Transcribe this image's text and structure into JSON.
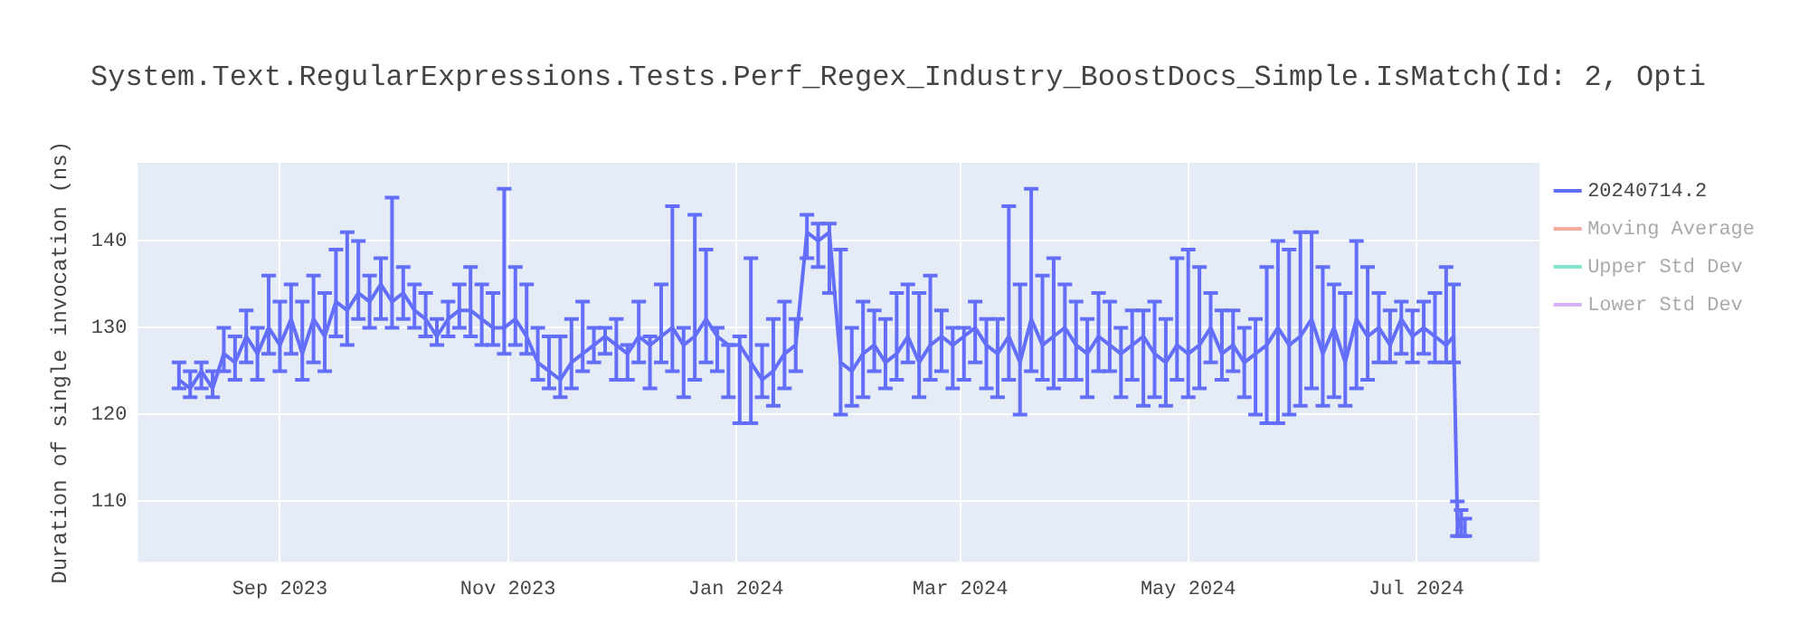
{
  "chart_data": {
    "type": "line",
    "title": "System.Text.RegularExpressions.Tests.Perf_Regex_Industry_BoostDocs_Simple.IsMatch(Id: 2, Opti",
    "ylabel": "Duration of single invocation (ns)",
    "xlim": [
      "2023-07-25",
      "2024-08-03"
    ],
    "xticks": [
      {
        "value": "2023-09-01",
        "label": "Sep 2023"
      },
      {
        "value": "2023-11-01",
        "label": "Nov 2023"
      },
      {
        "value": "2024-01-01",
        "label": "Jan 2024"
      },
      {
        "value": "2024-03-01",
        "label": "Mar 2024"
      },
      {
        "value": "2024-05-01",
        "label": "May 2024"
      },
      {
        "value": "2024-07-01",
        "label": "Jul 2024"
      }
    ],
    "ylim": [
      103,
      149
    ],
    "yticks": [
      110,
      120,
      130,
      140
    ],
    "grid": true,
    "legend": "top right",
    "marker": "none",
    "line_style": "solid",
    "x": [
      "2023-08-05",
      "2023-08-08",
      "2023-08-11",
      "2023-08-14",
      "2023-08-17",
      "2023-08-20",
      "2023-08-23",
      "2023-08-26",
      "2023-08-29",
      "2023-09-01",
      "2023-09-04",
      "2023-09-07",
      "2023-09-10",
      "2023-09-13",
      "2023-09-16",
      "2023-09-19",
      "2023-09-22",
      "2023-09-25",
      "2023-09-28",
      "2023-10-01",
      "2023-10-04",
      "2023-10-07",
      "2023-10-10",
      "2023-10-13",
      "2023-10-16",
      "2023-10-19",
      "2023-10-22",
      "2023-10-25",
      "2023-10-28",
      "2023-10-31",
      "2023-11-03",
      "2023-11-06",
      "2023-11-09",
      "2023-11-12",
      "2023-11-15",
      "2023-11-18",
      "2023-11-21",
      "2023-11-24",
      "2023-11-27",
      "2023-11-30",
      "2023-12-03",
      "2023-12-06",
      "2023-12-09",
      "2023-12-12",
      "2023-12-15",
      "2023-12-18",
      "2023-12-21",
      "2023-12-24",
      "2023-12-27",
      "2023-12-30",
      "2024-01-02",
      "2024-01-05",
      "2024-01-08",
      "2024-01-11",
      "2024-01-14",
      "2024-01-17",
      "2024-01-20",
      "2024-01-23",
      "2024-01-26",
      "2024-01-29",
      "2024-02-01",
      "2024-02-04",
      "2024-02-07",
      "2024-02-10",
      "2024-02-13",
      "2024-02-16",
      "2024-02-19",
      "2024-02-22",
      "2024-02-25",
      "2024-02-28",
      "2024-03-02",
      "2024-03-05",
      "2024-03-08",
      "2024-03-11",
      "2024-03-14",
      "2024-03-17",
      "2024-03-20",
      "2024-03-23",
      "2024-03-26",
      "2024-03-29",
      "2024-04-01",
      "2024-04-04",
      "2024-04-07",
      "2024-04-10",
      "2024-04-13",
      "2024-04-16",
      "2024-04-19",
      "2024-04-22",
      "2024-04-25",
      "2024-04-28",
      "2024-05-01",
      "2024-05-04",
      "2024-05-07",
      "2024-05-10",
      "2024-05-13",
      "2024-05-16",
      "2024-05-19",
      "2024-05-22",
      "2024-05-25",
      "2024-05-28",
      "2024-05-31",
      "2024-06-03",
      "2024-06-06",
      "2024-06-09",
      "2024-06-12",
      "2024-06-15",
      "2024-06-18",
      "2024-06-21",
      "2024-06-24",
      "2024-06-27",
      "2024-06-30",
      "2024-07-03",
      "2024-07-06",
      "2024-07-09",
      "2024-07-11",
      "2024-07-12",
      "2024-07-13",
      "2024-07-14"
    ],
    "series": [
      {
        "name": "20240714.2",
        "color": "#636efa",
        "values": [
          124,
          123,
          125,
          123,
          127,
          126,
          129,
          127,
          130,
          128,
          131,
          127,
          131,
          129,
          133,
          132,
          134,
          133,
          135,
          133,
          134,
          132,
          131,
          129,
          131,
          132,
          132,
          131,
          130,
          130,
          131,
          129,
          126,
          125,
          124,
          126,
          127,
          128,
          129,
          128,
          127,
          129,
          128,
          129,
          130,
          128,
          129,
          131,
          129,
          128,
          128,
          126,
          124,
          125,
          127,
          128,
          141,
          140,
          141,
          126,
          125,
          127,
          128,
          126,
          127,
          129,
          126,
          128,
          129,
          128,
          129,
          130,
          128,
          127,
          129,
          126,
          131,
          128,
          129,
          130,
          128,
          127,
          129,
          128,
          127,
          128,
          129,
          127,
          126,
          128,
          127,
          128,
          130,
          127,
          128,
          126,
          127,
          128,
          130,
          128,
          129,
          131,
          127,
          130,
          126,
          131,
          129,
          130,
          128,
          131,
          129,
          130,
          129,
          128,
          129,
          108,
          107,
          107
        ],
        "errors": [
          [
            123,
            126
          ],
          [
            122,
            125
          ],
          [
            123,
            126
          ],
          [
            122,
            125
          ],
          [
            125,
            130
          ],
          [
            124,
            129
          ],
          [
            126,
            132
          ],
          [
            124,
            130
          ],
          [
            127,
            136
          ],
          [
            125,
            133
          ],
          [
            127,
            135
          ],
          [
            124,
            133
          ],
          [
            126,
            136
          ],
          [
            125,
            134
          ],
          [
            129,
            139
          ],
          [
            128,
            141
          ],
          [
            131,
            140
          ],
          [
            130,
            136
          ],
          [
            131,
            138
          ],
          [
            130,
            145
          ],
          [
            131,
            137
          ],
          [
            130,
            135
          ],
          [
            129,
            134
          ],
          [
            128,
            131
          ],
          [
            129,
            133
          ],
          [
            130,
            135
          ],
          [
            129,
            137
          ],
          [
            128,
            135
          ],
          [
            128,
            134
          ],
          [
            127,
            146
          ],
          [
            128,
            137
          ],
          [
            127,
            135
          ],
          [
            124,
            130
          ],
          [
            123,
            129
          ],
          [
            122,
            129
          ],
          [
            123,
            131
          ],
          [
            125,
            133
          ],
          [
            126,
            130
          ],
          [
            127,
            130
          ],
          [
            124,
            131
          ],
          [
            124,
            128
          ],
          [
            126,
            133
          ],
          [
            123,
            129
          ],
          [
            126,
            135
          ],
          [
            125,
            144
          ],
          [
            122,
            130
          ],
          [
            124,
            143
          ],
          [
            126,
            139
          ],
          [
            125,
            130
          ],
          [
            122,
            128
          ],
          [
            119,
            129
          ],
          [
            119,
            138
          ],
          [
            122,
            128
          ],
          [
            121,
            131
          ],
          [
            123,
            133
          ],
          [
            125,
            131
          ],
          [
            138,
            143
          ],
          [
            137,
            142
          ],
          [
            134,
            142
          ],
          [
            120,
            139
          ],
          [
            121,
            130
          ],
          [
            122,
            133
          ],
          [
            125,
            132
          ],
          [
            123,
            131
          ],
          [
            124,
            134
          ],
          [
            126,
            135
          ],
          [
            122,
            134
          ],
          [
            124,
            136
          ],
          [
            125,
            132
          ],
          [
            123,
            130
          ],
          [
            124,
            130
          ],
          [
            126,
            133
          ],
          [
            123,
            131
          ],
          [
            122,
            131
          ],
          [
            124,
            144
          ],
          [
            120,
            135
          ],
          [
            125,
            146
          ],
          [
            124,
            136
          ],
          [
            123,
            138
          ],
          [
            124,
            135
          ],
          [
            124,
            133
          ],
          [
            122,
            131
          ],
          [
            125,
            134
          ],
          [
            125,
            133
          ],
          [
            122,
            130
          ],
          [
            124,
            132
          ],
          [
            121,
            132
          ],
          [
            122,
            133
          ],
          [
            121,
            131
          ],
          [
            124,
            138
          ],
          [
            122,
            139
          ],
          [
            123,
            137
          ],
          [
            126,
            134
          ],
          [
            124,
            132
          ],
          [
            125,
            132
          ],
          [
            122,
            130
          ],
          [
            120,
            131
          ],
          [
            119,
            137
          ],
          [
            119,
            140
          ],
          [
            120,
            139
          ],
          [
            121,
            141
          ],
          [
            123,
            141
          ],
          [
            121,
            137
          ],
          [
            122,
            135
          ],
          [
            121,
            134
          ],
          [
            123,
            140
          ],
          [
            124,
            137
          ],
          [
            126,
            134
          ],
          [
            126,
            132
          ],
          [
            127,
            133
          ],
          [
            126,
            132
          ],
          [
            127,
            133
          ],
          [
            126,
            134
          ],
          [
            126,
            137
          ],
          [
            126,
            135
          ],
          [
            106,
            110
          ],
          [
            106,
            109
          ],
          [
            106,
            108
          ]
        ]
      },
      {
        "name": "Moving Average",
        "color": "#ef553b",
        "values": [
          null,
          null,
          null,
          null,
          null,
          null,
          null,
          null,
          null,
          null,
          null,
          null,
          null,
          null,
          null,
          null,
          null,
          null,
          null,
          null,
          null,
          null,
          null,
          null,
          null,
          null,
          null,
          null,
          null,
          null,
          null,
          null,
          null,
          null,
          null,
          null,
          null,
          null,
          null,
          null,
          null,
          null,
          null,
          null,
          null,
          null,
          null,
          null,
          null,
          null,
          null,
          null,
          null,
          null,
          null,
          null,
          null,
          null,
          null,
          null,
          null,
          null,
          null,
          null,
          null,
          null,
          null,
          null,
          null,
          null,
          null,
          null,
          null,
          null,
          null,
          null,
          null,
          null,
          null,
          null,
          null,
          null,
          null,
          null,
          null,
          null,
          null,
          null,
          null,
          null,
          null,
          null,
          null,
          null,
          null,
          null,
          null,
          null,
          null,
          null,
          null,
          null,
          null,
          null,
          null,
          null,
          null,
          null,
          null,
          null,
          null,
          null,
          null,
          null,
          null,
          null,
          null,
          null
        ]
      },
      {
        "name": "Upper Std Dev",
        "color": "#00cc96",
        "values": [
          null,
          null,
          null,
          null,
          null,
          null,
          null,
          null,
          null,
          null,
          null,
          null,
          null,
          null,
          null,
          null,
          null,
          null,
          null,
          null,
          null,
          null,
          null,
          null,
          null,
          null,
          null,
          null,
          null,
          null,
          null,
          null,
          null,
          null,
          null,
          null,
          null,
          null,
          null,
          null,
          null,
          null,
          null,
          null,
          null,
          null,
          null,
          null,
          null,
          null,
          null,
          null,
          null,
          null,
          null,
          null,
          null,
          null,
          null,
          null,
          null,
          null,
          null,
          null,
          null,
          null,
          null,
          null,
          null,
          null,
          null,
          null,
          null,
          null,
          null,
          null,
          null,
          null,
          null,
          null,
          null,
          null,
          null,
          null,
          null,
          null,
          null,
          null,
          null,
          null,
          null,
          null,
          null,
          null,
          null,
          null,
          null,
          null,
          null,
          null,
          null,
          null,
          null,
          null,
          null,
          null,
          null,
          null,
          null,
          null,
          null,
          null,
          null,
          null,
          null,
          null,
          null,
          null
        ]
      },
      {
        "name": "Lower Std Dev",
        "color": "#ab63fa",
        "values": [
          null,
          null,
          null,
          null,
          null,
          null,
          null,
          null,
          null,
          null,
          null,
          null,
          null,
          null,
          null,
          null,
          null,
          null,
          null,
          null,
          null,
          null,
          null,
          null,
          null,
          null,
          null,
          null,
          null,
          null,
          null,
          null,
          null,
          null,
          null,
          null,
          null,
          null,
          null,
          null,
          null,
          null,
          null,
          null,
          null,
          null,
          null,
          null,
          null,
          null,
          null,
          null,
          null,
          null,
          null,
          null,
          null,
          null,
          null,
          null,
          null,
          null,
          null,
          null,
          null,
          null,
          null,
          null,
          null,
          null,
          null,
          null,
          null,
          null,
          null,
          null,
          null,
          null,
          null,
          null,
          null,
          null,
          null,
          null,
          null,
          null,
          null,
          null,
          null,
          null,
          null,
          null,
          null,
          null,
          null,
          null,
          null,
          null,
          null,
          null,
          null,
          null,
          null,
          null,
          null,
          null,
          null,
          null,
          null,
          null,
          null,
          null,
          null,
          null,
          null,
          null,
          null,
          null
        ]
      }
    ]
  }
}
